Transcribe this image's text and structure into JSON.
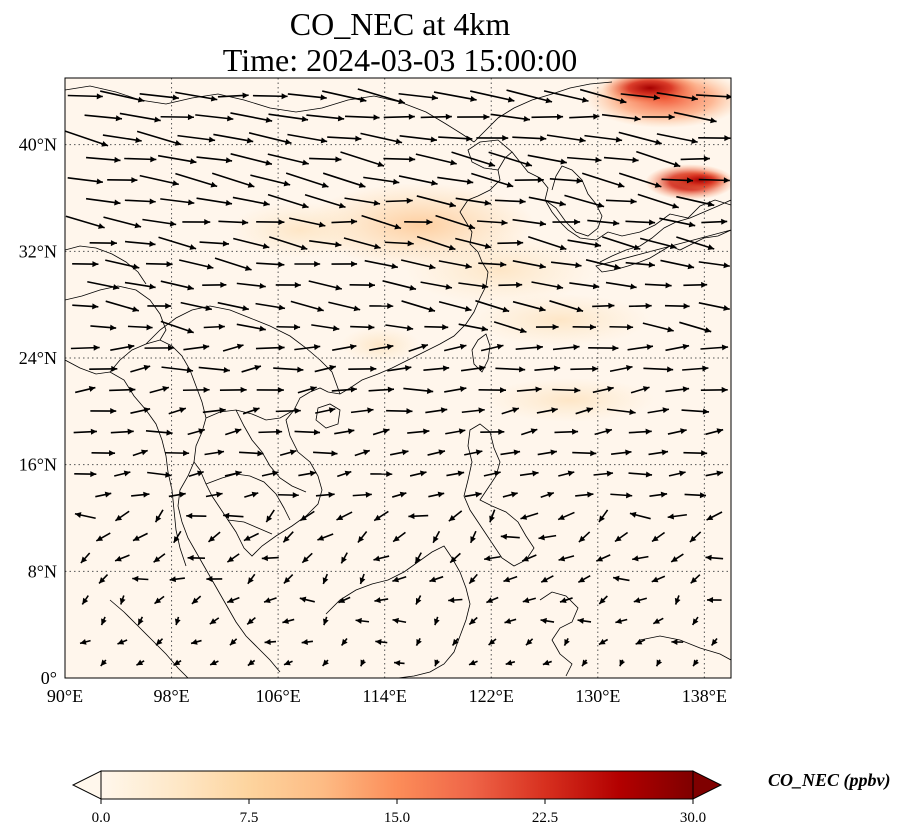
{
  "title": {
    "line1": "CO_NEC at 4km",
    "line2": "Time: 2024-03-03 15:00:00"
  },
  "map": {
    "projection": "PlateCarree",
    "lon_range": [
      90,
      140
    ],
    "lat_range": [
      0,
      45
    ],
    "lon_ticks": [
      {
        "value": 90,
        "label": "90°E"
      },
      {
        "value": 98,
        "label": "98°E"
      },
      {
        "value": 106,
        "label": "106°E"
      },
      {
        "value": 114,
        "label": "114°E"
      },
      {
        "value": 122,
        "label": "122°E"
      },
      {
        "value": 130,
        "label": "130°E"
      },
      {
        "value": 138,
        "label": "138°E"
      }
    ],
    "lat_ticks": [
      {
        "value": 0,
        "label": "0°"
      },
      {
        "value": 8,
        "label": "8°N"
      },
      {
        "value": 16,
        "label": "16°N"
      },
      {
        "value": 24,
        "label": "24°N"
      },
      {
        "value": 32,
        "label": "32°N"
      },
      {
        "value": 40,
        "label": "40°N"
      }
    ],
    "gridlines": true,
    "gridline_style": "dotted",
    "field_colormap": "OrRd",
    "background_color": "#fff6ec",
    "concentration_features": [
      {
        "lon": 131.5,
        "lat": 44,
        "value": 18
      },
      {
        "lon": 137,
        "lat": 37.3,
        "value": 28
      },
      {
        "lon": 116,
        "lat": 34,
        "value": 6
      },
      {
        "lon": 121,
        "lat": 31,
        "value": 4.5
      },
      {
        "lon": 125,
        "lat": 28,
        "value": 3
      },
      {
        "lon": 127,
        "lat": 21,
        "value": 2
      },
      {
        "lon": 108,
        "lat": 33,
        "value": 3
      }
    ],
    "wind_vectors": "quiver field of winds at 4km, predominantly westerly, stronger in the north"
  },
  "colorbar": {
    "title": "CO_NEC (ppbv)",
    "min": 0,
    "max": 30,
    "extend": "both",
    "ticks": [
      {
        "value": 0,
        "label": "0.0"
      },
      {
        "value": 7.5,
        "label": "7.5"
      },
      {
        "value": 15,
        "label": "15.0"
      },
      {
        "value": 22.5,
        "label": "22.5"
      },
      {
        "value": 30,
        "label": "30.0"
      }
    ],
    "colors": [
      "#fff7ec",
      "#fee8c8",
      "#fdd49e",
      "#fdbb84",
      "#fc8d59",
      "#ef6548",
      "#d7301f",
      "#b30000",
      "#7f0000"
    ]
  }
}
